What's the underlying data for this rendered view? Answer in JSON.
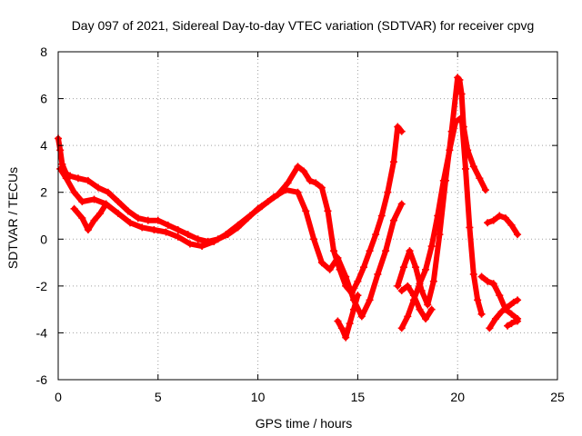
{
  "chart_data": {
    "type": "scatter",
    "title": "Day 097 of 2021, Sidereal Day-to-day VTEC variation (SDTVAR) for receiver cpvg",
    "xlabel": "GPS time / hours",
    "ylabel": "SDTVAR / TECUs",
    "xlim": [
      0,
      25
    ],
    "ylim": [
      -6,
      8
    ],
    "xticks": [
      "0",
      "5",
      "10",
      "15",
      "20",
      "25"
    ],
    "yticks": [
      "-6",
      "-4",
      "-2",
      "0",
      "2",
      "4",
      "6",
      "8"
    ],
    "grid": true,
    "marker": "plus",
    "color": "#ff0000",
    "series": [
      {
        "x": [
          0.0,
          0.1,
          0.2,
          0.4,
          0.6,
          1.0,
          1.5,
          2.0,
          2.5,
          3.0,
          3.5,
          4.0,
          4.5,
          5.0,
          5.5,
          6.0,
          6.5,
          7.0,
          7.5,
          8.0,
          8.5,
          9.0,
          9.5,
          10.0,
          10.5,
          11.0,
          11.5,
          12.0,
          12.3,
          12.6,
          12.9,
          13.2,
          13.5,
          13.8,
          14.1,
          14.4,
          14.7,
          15.0,
          15.3,
          15.6,
          15.9,
          16.2,
          16.5,
          16.8,
          17.0,
          17.2
        ],
        "y": [
          4.3,
          3.8,
          3.2,
          2.8,
          2.7,
          2.6,
          2.5,
          2.2,
          2.0,
          1.6,
          1.2,
          0.9,
          0.8,
          0.8,
          0.6,
          0.4,
          0.2,
          0.0,
          -0.1,
          0.0,
          0.2,
          0.5,
          0.9,
          1.3,
          1.6,
          1.9,
          2.4,
          3.1,
          2.9,
          2.5,
          2.4,
          2.2,
          1.2,
          -0.5,
          -1.3,
          -2.0,
          -2.3,
          -1.8,
          -1.2,
          -0.5,
          0.2,
          1.0,
          2.0,
          3.3,
          4.8,
          4.6
        ]
      },
      {
        "x": [
          0.1,
          0.4,
          0.8,
          1.2,
          1.8,
          2.4,
          3.0,
          3.6,
          4.2,
          4.8,
          5.4,
          6.0,
          6.6,
          7.2,
          7.8,
          8.4,
          9.0,
          9.6,
          10.2,
          10.8,
          11.4,
          12.0,
          12.4,
          12.8,
          13.2,
          13.6,
          14.0,
          14.4,
          14.8,
          15.2,
          15.6,
          16.0,
          16.4,
          16.8,
          17.2
        ],
        "y": [
          3.0,
          2.6,
          2.0,
          1.6,
          1.7,
          1.5,
          1.1,
          0.7,
          0.5,
          0.4,
          0.3,
          0.1,
          -0.2,
          -0.3,
          -0.1,
          0.2,
          0.6,
          1.0,
          1.4,
          1.8,
          2.1,
          2.0,
          1.2,
          0.0,
          -1.0,
          -1.3,
          -0.8,
          -1.6,
          -2.6,
          -3.3,
          -2.6,
          -1.5,
          -0.5,
          0.8,
          1.5
        ]
      },
      {
        "x": [
          0.8,
          1.2,
          1.5,
          1.8,
          2.1,
          2.4
        ],
        "y": [
          1.3,
          0.9,
          0.4,
          0.8,
          1.1,
          1.5
        ]
      },
      {
        "x": [
          14.0,
          14.2,
          14.4,
          14.6,
          14.8,
          15.0
        ],
        "y": [
          -3.5,
          -3.8,
          -4.2,
          -3.6,
          -3.0,
          -2.4
        ]
      },
      {
        "x": [
          17.0,
          17.3,
          17.6,
          17.9,
          18.2,
          18.5,
          18.8,
          19.1,
          19.4,
          19.7,
          20.0,
          20.1,
          20.2,
          20.3,
          20.5,
          20.8,
          21.1,
          21.4
        ],
        "y": [
          -2.0,
          -1.2,
          -0.5,
          -1.2,
          -2.2,
          -2.8,
          -1.8,
          0.2,
          2.5,
          4.6,
          6.9,
          6.8,
          6.2,
          4.8,
          3.8,
          3.1,
          2.6,
          2.1
        ]
      },
      {
        "x": [
          17.2,
          17.5,
          17.8,
          18.1,
          18.4,
          18.7,
          19.0,
          19.3,
          19.6,
          19.9,
          20.2,
          20.4,
          20.6,
          20.8,
          21.0,
          21.2
        ],
        "y": [
          -3.8,
          -3.3,
          -2.6,
          -1.9,
          -1.3,
          -0.3,
          1.0,
          2.5,
          3.8,
          5.0,
          5.2,
          3.0,
          0.5,
          -1.5,
          -2.6,
          -3.2
        ]
      },
      {
        "x": [
          17.2,
          17.5,
          17.8,
          18.1,
          18.4,
          18.7
        ],
        "y": [
          -2.2,
          -2.0,
          -2.4,
          -3.0,
          -3.4,
          -3.0
        ]
      },
      {
        "x": [
          21.2,
          21.5,
          21.8,
          22.1,
          22.4,
          22.7,
          23.0
        ],
        "y": [
          -1.6,
          -1.8,
          -1.9,
          -2.4,
          -3.0,
          -3.2,
          -3.4
        ]
      },
      {
        "x": [
          21.5,
          21.8,
          22.1,
          22.4,
          22.7,
          23.0
        ],
        "y": [
          0.7,
          0.8,
          1.0,
          0.9,
          0.6,
          0.2
        ]
      },
      {
        "x": [
          21.6,
          21.9,
          22.2,
          22.5,
          22.8,
          23.0
        ],
        "y": [
          -3.8,
          -3.4,
          -3.1,
          -2.9,
          -2.7,
          -2.6
        ]
      },
      {
        "x": [
          22.5,
          22.7,
          22.9,
          23.0
        ],
        "y": [
          -3.7,
          -3.6,
          -3.5,
          -3.5
        ]
      }
    ]
  }
}
